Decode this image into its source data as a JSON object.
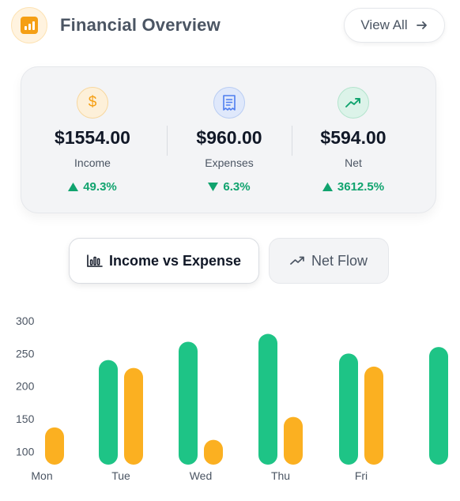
{
  "header": {
    "title": "Financial Overview",
    "view_all_label": "View All",
    "logo_icon": "bar-chart-icon",
    "accent_color": "#f59f14"
  },
  "summary": {
    "income": {
      "amount": "$1554.00",
      "label": "Income",
      "change": "49.3%",
      "direction": "up",
      "icon": "dollar-icon"
    },
    "expenses": {
      "amount": "$960.00",
      "label": "Expenses",
      "change": "6.3%",
      "direction": "down",
      "icon": "receipt-icon"
    },
    "net": {
      "amount": "$594.00",
      "label": "Net",
      "change": "3612.5%",
      "direction": "up",
      "icon": "trending-up-icon"
    }
  },
  "tabs": {
    "income_vs_expense": "Income vs Expense",
    "net_flow": "Net Flow"
  },
  "chart_data": {
    "type": "bar",
    "categories": [
      "Mon",
      "Tue",
      "Wed",
      "Thu",
      "Fri",
      ""
    ],
    "series": [
      {
        "values": [
          null,
          240,
          268,
          280,
          250,
          260
        ],
        "color": "#1ec486"
      },
      {
        "values": [
          137,
          228,
          118,
          153,
          230,
          null
        ],
        "color": "#fbb021"
      }
    ],
    "yticks": [
      100,
      150,
      200,
      250,
      300
    ],
    "ylim": [
      80,
      300
    ],
    "xlabel": "",
    "ylabel": "",
    "grid": false,
    "legend": "none"
  }
}
